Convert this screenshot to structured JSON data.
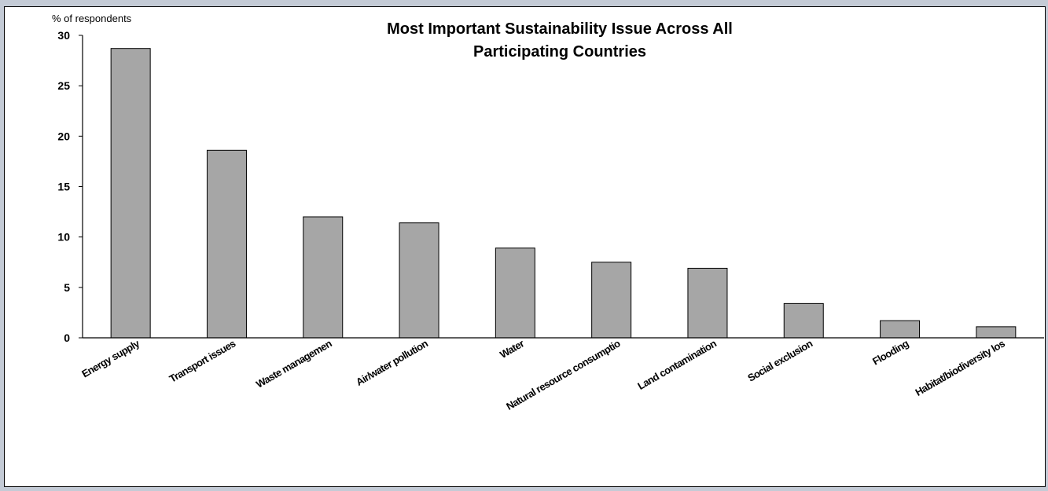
{
  "chart_data": {
    "type": "bar",
    "title_lines": [
      "Most Important Sustainability Issue Across All",
      "Participating Countries"
    ],
    "ylabel": "% of respondents",
    "xlabel": "",
    "ylim": [
      0,
      30
    ],
    "yticks": [
      0,
      5,
      10,
      15,
      20,
      25,
      30
    ],
    "categories": [
      "Energy supply",
      "Transport issues",
      "Waste management",
      "Air/water pollution",
      "Water",
      "Natural resource consumption",
      "Land contamination",
      "Social exclusion",
      "Flooding",
      "Habitat/biodiversity loss"
    ],
    "category_labels_visible": [
      "Energy supply",
      "Transport issues",
      "Waste managemen",
      "Air/water pollution",
      "Water",
      "Natural resource consumptio",
      "Land contamination",
      "Social exclusion",
      "Flooding",
      "Habitat/biodiversity los"
    ],
    "values": [
      28.7,
      18.6,
      12.0,
      11.4,
      8.9,
      7.5,
      6.9,
      3.4,
      1.7,
      1.1
    ],
    "bar_color": "#a6a6a6",
    "grid": false,
    "legend": "none"
  }
}
